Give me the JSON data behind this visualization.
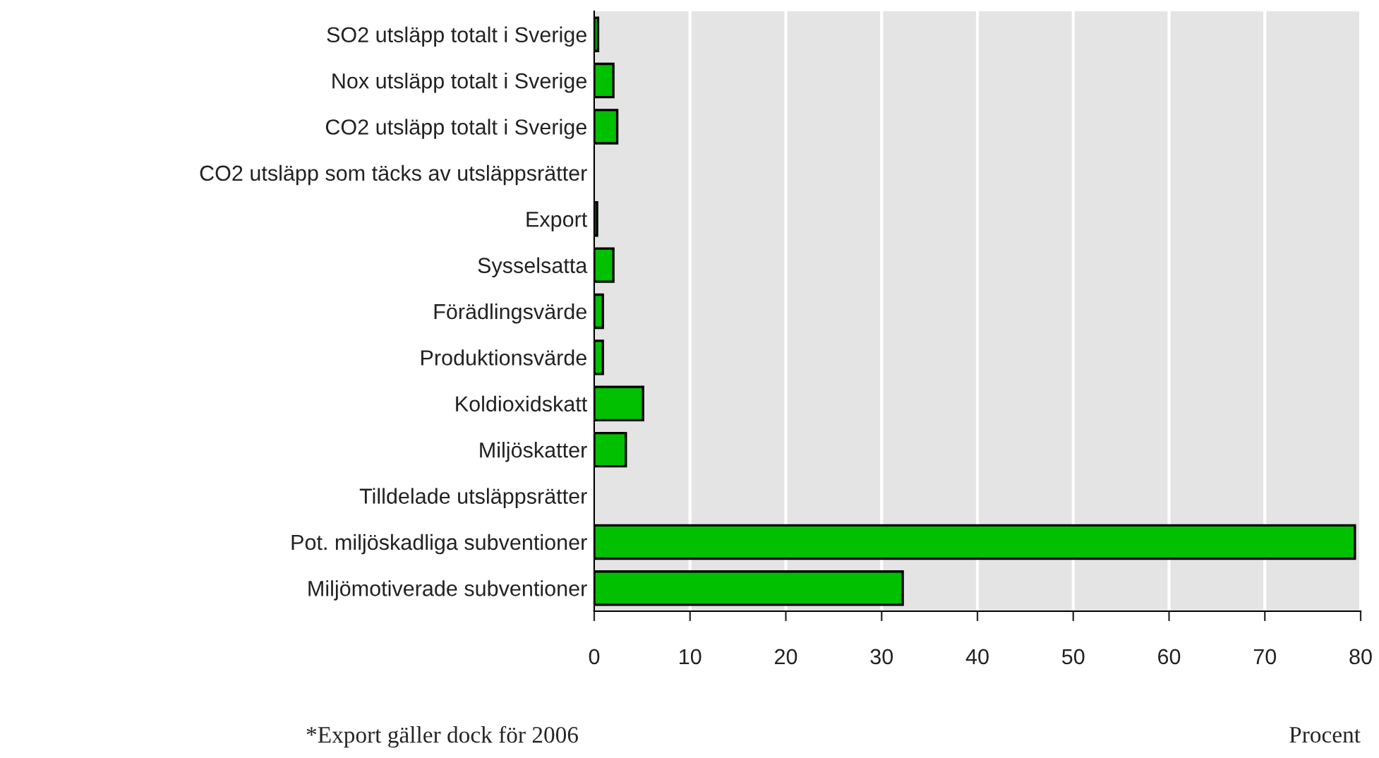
{
  "chart_data": {
    "type": "bar",
    "orientation": "horizontal",
    "xlabel": "Procent",
    "categories": [
      "SO2 utsläpp totalt i Sverige",
      "Nox utsläpp totalt i Sverige",
      "CO2 utsläpp totalt i Sverige",
      "CO2 utsläpp som täcks av utsläppsrätter",
      "Export",
      "Sysselsatta",
      "Förädlingsvärde",
      "Produktionsvärde",
      "Koldioxidskatt",
      "Miljöskatter",
      "Tilldelade utsläppsrätter",
      "Pot. miljöskadliga subventioner",
      "Miljömotiverade subventioner"
    ],
    "values": [
      0.4,
      2.0,
      2.4,
      0,
      0.3,
      2.0,
      0.9,
      0.9,
      5.1,
      3.3,
      0,
      79.4,
      32.2
    ],
    "color": "#00c000",
    "xlim": [
      0,
      80
    ],
    "xticks": [
      0,
      10,
      20,
      30,
      40,
      50,
      60,
      70,
      80
    ],
    "grid": "x",
    "annotations": [
      "*Export gäller dock för 2006"
    ]
  }
}
